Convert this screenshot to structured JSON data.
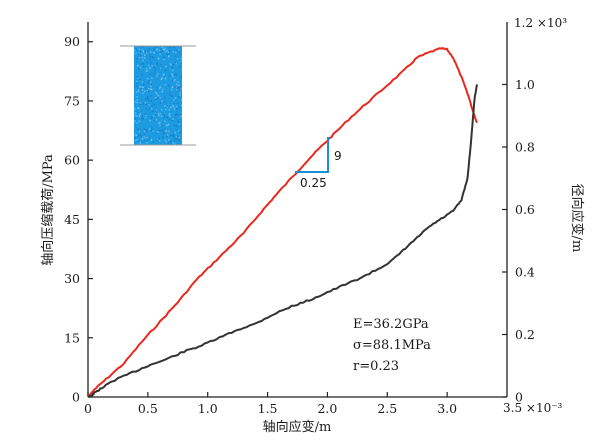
{
  "chart_data": {
    "type": "line",
    "xlabel": "轴向应变/m",
    "ylabel_left": "轴向压缩载荷/MPa",
    "ylabel_right": "径向应变/m",
    "x_exponent": "3.5 ×10⁻³",
    "y2_exponent": "1.2 ×10³",
    "xlim": [
      0,
      3.5
    ],
    "ylim": [
      0,
      95
    ],
    "y2lim": [
      0,
      1.2
    ],
    "x_ticks": [
      "0",
      "0.5",
      "1.0",
      "1.5",
      "2.0",
      "2.5",
      "3.0"
    ],
    "y_ticks": [
      "0",
      "15",
      "30",
      "45",
      "60",
      "75",
      "90"
    ],
    "y2_ticks": [
      "0",
      "0.2",
      "0.4",
      "0.6",
      "0.8",
      "1.0"
    ],
    "grid": false,
    "series": [
      {
        "axis": "left",
        "color": "#e8281e",
        "points": [
          [
            0,
            0
          ],
          [
            0.05,
            1.8
          ],
          [
            0.15,
            4.5
          ],
          [
            0.3,
            8.5
          ],
          [
            0.45,
            14
          ],
          [
            0.6,
            19
          ],
          [
            0.75,
            24
          ],
          [
            0.9,
            29.5
          ],
          [
            1.0,
            32.5
          ],
          [
            1.15,
            37
          ],
          [
            1.3,
            41.5
          ],
          [
            1.45,
            47
          ],
          [
            1.55,
            50.5
          ],
          [
            1.7,
            55.5
          ],
          [
            1.85,
            60.5
          ],
          [
            1.95,
            63.5
          ],
          [
            2.05,
            66.5
          ],
          [
            2.2,
            71
          ],
          [
            2.35,
            75
          ],
          [
            2.5,
            79
          ],
          [
            2.65,
            83
          ],
          [
            2.75,
            86
          ],
          [
            2.85,
            87.3
          ],
          [
            2.95,
            88.3
          ],
          [
            3.0,
            88.0
          ],
          [
            3.05,
            86
          ],
          [
            3.12,
            81
          ],
          [
            3.18,
            76
          ],
          [
            3.23,
            71
          ],
          [
            3.25,
            69.5
          ]
        ]
      },
      {
        "axis": "right",
        "color": "#333333",
        "points": [
          [
            0,
            0
          ],
          [
            0.03,
            0.005
          ],
          [
            0.05,
            0.012
          ],
          [
            0.1,
            0.025
          ],
          [
            0.2,
            0.05
          ],
          [
            0.35,
            0.075
          ],
          [
            0.5,
            0.1
          ],
          [
            0.65,
            0.12
          ],
          [
            0.8,
            0.145
          ],
          [
            0.95,
            0.165
          ],
          [
            1.1,
            0.19
          ],
          [
            1.25,
            0.215
          ],
          [
            1.4,
            0.235
          ],
          [
            1.55,
            0.265
          ],
          [
            1.7,
            0.29
          ],
          [
            1.85,
            0.31
          ],
          [
            2.0,
            0.335
          ],
          [
            2.15,
            0.36
          ],
          [
            2.3,
            0.385
          ],
          [
            2.45,
            0.415
          ],
          [
            2.55,
            0.44
          ],
          [
            2.65,
            0.475
          ],
          [
            2.75,
            0.51
          ],
          [
            2.85,
            0.545
          ],
          [
            2.95,
            0.57
          ],
          [
            3.05,
            0.595
          ],
          [
            3.12,
            0.63
          ],
          [
            3.17,
            0.7
          ],
          [
            3.2,
            0.82
          ],
          [
            3.23,
            0.96
          ],
          [
            3.25,
            1.0
          ]
        ]
      }
    ],
    "slope_marker": {
      "rise_label": "9",
      "run_label": "0.25",
      "color": "#1a8fd8"
    },
    "annotations": [
      "E=36.2GPa",
      "σ=88.1MPa",
      "r=0.23"
    ],
    "specimen_color": "#1e9be0"
  }
}
